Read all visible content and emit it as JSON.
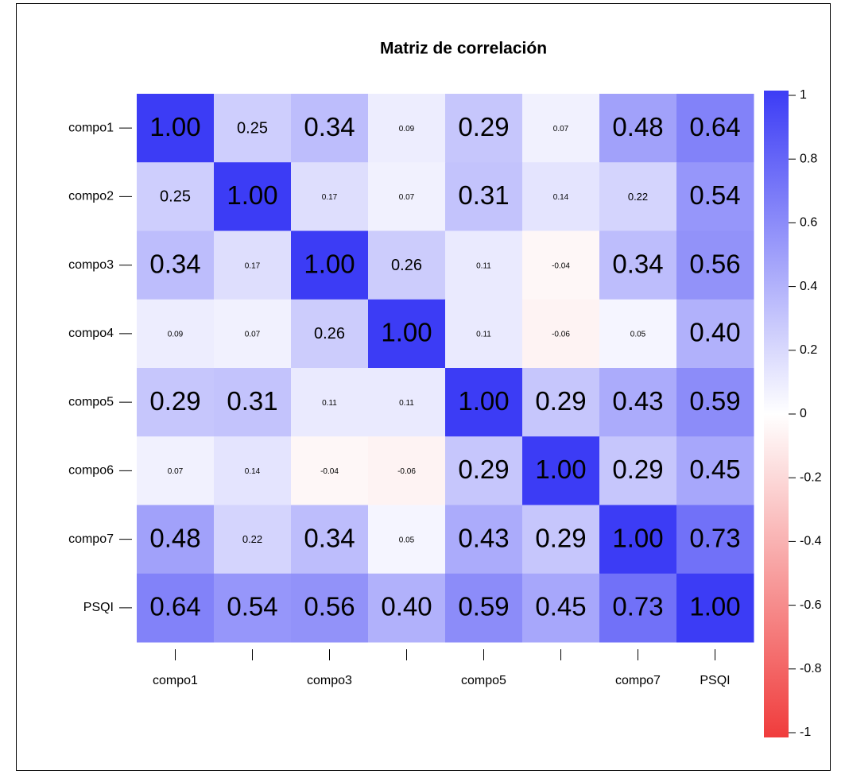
{
  "chart_data": {
    "type": "heatmap",
    "title": "Matriz de correlación",
    "categories": [
      "compo1",
      null,
      "compo3",
      null,
      "compo5",
      null,
      "compo7",
      "PSQI"
    ],
    "rows": [
      "compo1",
      "compo2",
      "compo3",
      "compo4",
      "compo5",
      "compo6",
      "compo7",
      "PSQI"
    ],
    "values": [
      [
        1.0,
        0.25,
        0.34,
        0.09,
        0.29,
        0.07,
        0.48,
        0.64
      ],
      [
        0.25,
        1.0,
        0.17,
        0.07,
        0.31,
        0.14,
        0.22,
        0.54
      ],
      [
        0.34,
        0.17,
        1.0,
        0.26,
        0.11,
        -0.04,
        0.34,
        0.56
      ],
      [
        0.09,
        0.07,
        0.26,
        1.0,
        0.11,
        -0.06,
        0.05,
        0.4
      ],
      [
        0.29,
        0.31,
        0.11,
        0.11,
        1.0,
        0.29,
        0.43,
        0.59
      ],
      [
        0.07,
        0.14,
        -0.04,
        -0.06,
        0.29,
        1.0,
        0.29,
        0.45
      ],
      [
        0.48,
        0.22,
        0.34,
        0.05,
        0.43,
        0.29,
        1.0,
        0.73
      ],
      [
        0.64,
        0.54,
        0.56,
        0.4,
        0.59,
        0.45,
        0.73,
        1.0
      ]
    ],
    "value_labels": [
      [
        "1.00",
        "0.25",
        "0.34",
        "0.09",
        "0.29",
        "0.07",
        "0.48",
        "0.64"
      ],
      [
        "0.25",
        "1.00",
        "0.17",
        "0.07",
        "0.31",
        "0.14",
        "0.22",
        "0.54"
      ],
      [
        "0.34",
        "0.17",
        "1.00",
        "0.26",
        "0.11",
        "-0.04",
        "0.34",
        "0.56"
      ],
      [
        "0.09",
        "0.07",
        "0.26",
        "1.00",
        "0.11",
        "-0.06",
        "0.05",
        "0.40"
      ],
      [
        "0.29",
        "0.31",
        "0.11",
        "0.11",
        "1.00",
        "0.29",
        "0.43",
        "0.59"
      ],
      [
        "0.07",
        "0.14",
        "-0.04",
        "-0.06",
        "0.29",
        "1.00",
        "0.29",
        "0.45"
      ],
      [
        "0.48",
        "0.22",
        "0.34",
        "0.05",
        "0.43",
        "0.29",
        "1.00",
        "0.73"
      ],
      [
        "0.64",
        "0.54",
        "0.56",
        "0.40",
        "0.59",
        "0.45",
        "0.73",
        "1.00"
      ]
    ],
    "zlim": [
      -1,
      1
    ],
    "zticks": [
      1,
      0.8,
      0.6,
      0.4,
      0.2,
      0,
      -0.2,
      -0.4,
      -0.6,
      -0.8,
      -1
    ],
    "colors": {
      "low": "#f03c3c",
      "mid": "#ffffff",
      "high": "#3c3cf5"
    }
  }
}
